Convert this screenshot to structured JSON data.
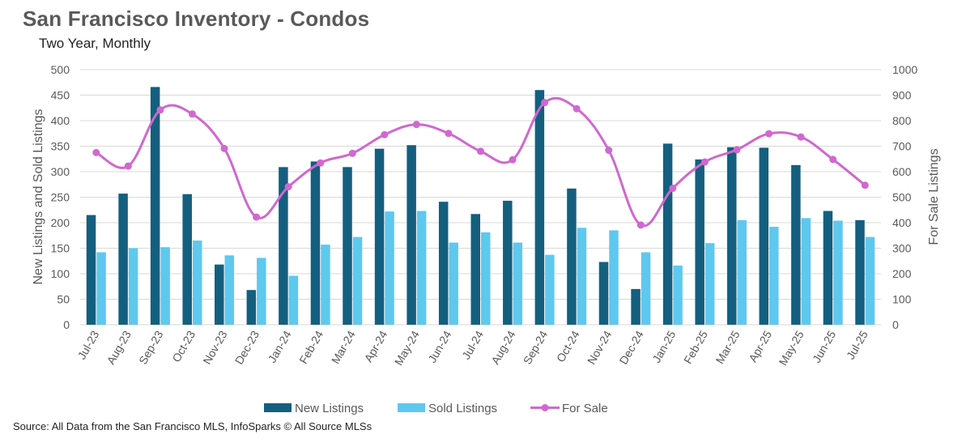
{
  "title": "San Francisco Inventory - Condos",
  "subtitle": "Two Year, Monthly",
  "source": "Source: All Data from the San Francisco MLS, InfoSparks © All Source MLSs",
  "chart_data": {
    "type": "bar",
    "categories": [
      "Jul-23",
      "Aug-23",
      "Sep-23",
      "Oct-23",
      "Nov-23",
      "Dec-23",
      "Jan-24",
      "Feb-24",
      "Mar-24",
      "Apr-24",
      "May-24",
      "Jun-24",
      "Jul-24",
      "Aug-24",
      "Sep-24",
      "Oct-24",
      "Nov-24",
      "Dec-24",
      "Jan-25",
      "Feb-25",
      "Mar-25",
      "Apr-25",
      "May-25",
      "Jun-25",
      "Jul-25"
    ],
    "ylabel": "New Listings and Sold Listings",
    "y2label": "For Sale Listings",
    "ylim": [
      0,
      500
    ],
    "y2lim": [
      0,
      1000
    ],
    "yticks": [
      "0",
      "50",
      "100",
      "150",
      "200",
      "250",
      "300",
      "350",
      "400",
      "450",
      "500"
    ],
    "y2ticks": [
      "0",
      "100",
      "200",
      "300",
      "400",
      "500",
      "600",
      "700",
      "800",
      "900",
      "1000"
    ],
    "grid": true,
    "legend_position": "bottom",
    "series": [
      {
        "name": "New Listings",
        "type": "bar",
        "axis": "left",
        "color": "#145f7f",
        "values": [
          215,
          257,
          466,
          256,
          118,
          68,
          309,
          320,
          309,
          345,
          352,
          241,
          217,
          243,
          460,
          267,
          123,
          70,
          355,
          324,
          348,
          347,
          313,
          223,
          205
        ]
      },
      {
        "name": "Sold Listings",
        "type": "bar",
        "axis": "left",
        "color": "#5fc8ee",
        "values": [
          142,
          150,
          152,
          165,
          136,
          131,
          96,
          157,
          172,
          222,
          223,
          161,
          181,
          161,
          137,
          190,
          185,
          142,
          116,
          160,
          205,
          192,
          209,
          204,
          172
        ]
      },
      {
        "name": "For Sale",
        "type": "line",
        "axis": "right",
        "color": "#d068cf",
        "values": [
          675,
          622,
          842,
          826,
          691,
          422,
          541,
          634,
          672,
          745,
          785,
          750,
          680,
          647,
          871,
          847,
          684,
          391,
          535,
          638,
          686,
          749,
          736,
          648,
          547
        ]
      }
    ]
  }
}
